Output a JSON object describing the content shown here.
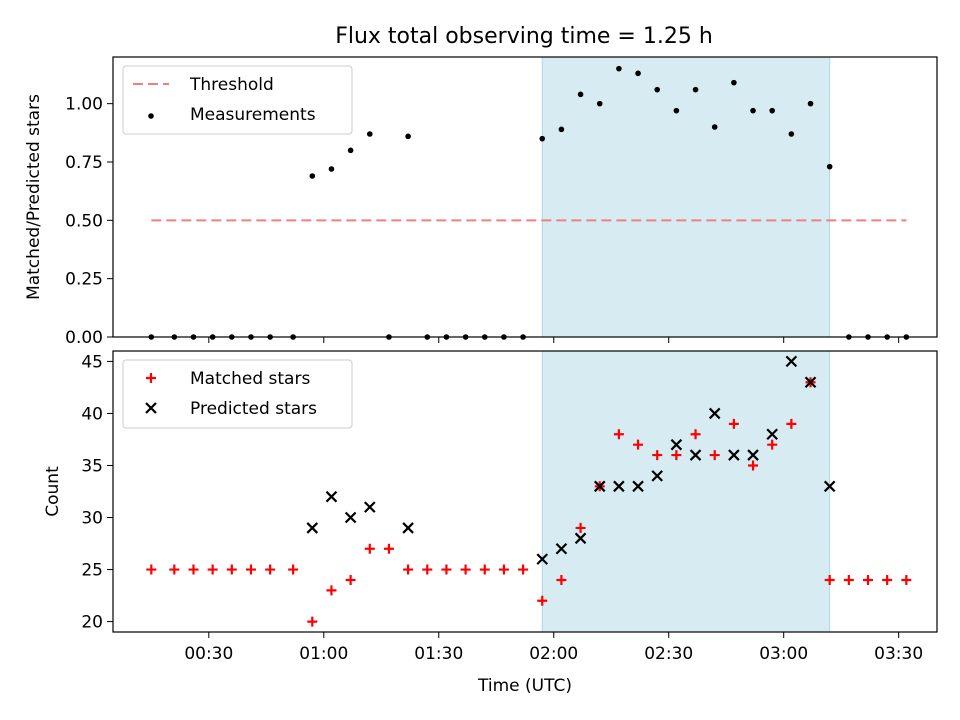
{
  "title": "Flux total observing time = 1.25 h",
  "colors": {
    "threshold": "#f08080",
    "measurement": "#000000",
    "matched": "#ff0000",
    "predicted": "#000000",
    "shade": "#add8e6"
  },
  "chart_data": [
    {
      "type": "scatter",
      "panel": "top",
      "ylabel": "Matched/Predicted stars",
      "ylim": [
        0,
        1.2
      ],
      "xlim": [
        "00:05",
        "03:40"
      ],
      "yticks": [
        "0.00",
        "0.25",
        "0.50",
        "0.75",
        "1.00"
      ],
      "legend_position": "upper left",
      "shaded_interval": [
        "01:57",
        "03:12"
      ],
      "series": [
        {
          "name": "Threshold",
          "style": "dashed-line",
          "x": [
            "00:15",
            "03:32"
          ],
          "y": [
            0.5,
            0.5
          ]
        },
        {
          "name": "Measurements",
          "style": "dot",
          "x": [
            "00:15",
            "00:21",
            "00:26",
            "00:31",
            "00:36",
            "00:41",
            "00:46",
            "00:52",
            "00:57",
            "01:02",
            "01:07",
            "01:12",
            "01:17",
            "01:22",
            "01:27",
            "01:32",
            "01:37",
            "01:42",
            "01:47",
            "01:52",
            "01:57",
            "02:02",
            "02:07",
            "02:12",
            "02:17",
            "02:22",
            "02:27",
            "02:32",
            "02:37",
            "02:42",
            "02:47",
            "02:52",
            "02:57",
            "03:02",
            "03:07",
            "03:12",
            "03:17",
            "03:22",
            "03:27",
            "03:32"
          ],
          "y": [
            0,
            0,
            0,
            0,
            0,
            0,
            0,
            0,
            0.69,
            0.72,
            0.8,
            0.87,
            0,
            0.86,
            0,
            0,
            0,
            0,
            0,
            0,
            0.85,
            0.89,
            1.04,
            1.0,
            1.15,
            1.13,
            1.06,
            0.97,
            1.06,
            0.9,
            1.09,
            0.97,
            0.97,
            0.87,
            1.0,
            0.73,
            0,
            0,
            0,
            0
          ]
        }
      ]
    },
    {
      "type": "scatter",
      "panel": "bottom",
      "xlabel": "Time (UTC)",
      "ylabel": "Count",
      "ylim": [
        19,
        46
      ],
      "xlim": [
        "00:05",
        "03:40"
      ],
      "xticks": [
        "00:30",
        "01:00",
        "01:30",
        "02:00",
        "02:30",
        "03:00",
        "03:30"
      ],
      "yticks": [
        "20",
        "25",
        "30",
        "35",
        "40",
        "45"
      ],
      "legend_position": "upper left",
      "shaded_interval": [
        "01:57",
        "03:12"
      ],
      "series": [
        {
          "name": "Matched stars",
          "style": "plus",
          "x": [
            "00:15",
            "00:21",
            "00:26",
            "00:31",
            "00:36",
            "00:41",
            "00:46",
            "00:52",
            "00:57",
            "01:02",
            "01:07",
            "01:12",
            "01:17",
            "01:22",
            "01:27",
            "01:32",
            "01:37",
            "01:42",
            "01:47",
            "01:52",
            "01:57",
            "02:02",
            "02:07",
            "02:12",
            "02:17",
            "02:22",
            "02:27",
            "02:32",
            "02:37",
            "02:42",
            "02:47",
            "02:52",
            "02:57",
            "03:02",
            "03:07",
            "03:12",
            "03:17",
            "03:22",
            "03:27",
            "03:32"
          ],
          "y": [
            25,
            25,
            25,
            25,
            25,
            25,
            25,
            25,
            20,
            23,
            24,
            27,
            27,
            25,
            25,
            25,
            25,
            25,
            25,
            25,
            22,
            24,
            29,
            33,
            38,
            37,
            36,
            36,
            38,
            36,
            39,
            35,
            37,
            39,
            43,
            24,
            24,
            24,
            24,
            24
          ]
        },
        {
          "name": "Predicted stars",
          "style": "x",
          "x": [
            "00:57",
            "01:02",
            "01:07",
            "01:12",
            "01:22",
            "01:57",
            "02:02",
            "02:07",
            "02:12",
            "02:17",
            "02:22",
            "02:27",
            "02:32",
            "02:37",
            "02:42",
            "02:47",
            "02:52",
            "02:57",
            "03:02",
            "03:07",
            "03:12"
          ],
          "y": [
            29,
            32,
            30,
            31,
            29,
            26,
            27,
            28,
            33,
            33,
            33,
            34,
            37,
            36,
            40,
            36,
            36,
            38,
            45,
            43,
            33
          ]
        }
      ]
    }
  ]
}
